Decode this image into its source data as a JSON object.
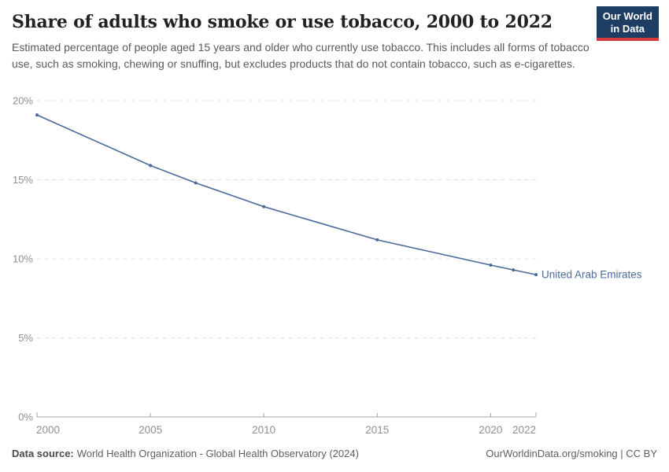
{
  "header": {
    "title": "Share of adults who smoke or use tobacco, 2000 to 2022",
    "subtitle": "Estimated percentage of people aged 15 years and older who currently use tobacco. This includes all forms of tobacco use, such as smoking, chewing or snuffing, but excludes products that do not contain tobacco, such as e-cigarettes."
  },
  "logo": {
    "line1": "Our World",
    "line2": "in Data"
  },
  "footer": {
    "data_source_label": "Data source:",
    "data_source_value": "World Health Organization - Global Health Observatory (2024)",
    "credit": "OurWorldinData.org/smoking | CC BY"
  },
  "colors": {
    "accent": "#4c6a9c",
    "brand_navy": "#1d3d63",
    "brand_red": "#d13d3d",
    "grid": "#dedede",
    "axis": "#a5a5a5",
    "tick_text": "#8f8f8f"
  },
  "chart_data": {
    "type": "line",
    "title": "Share of adults who smoke or use tobacco, 2000 to 2022",
    "xlabel": "",
    "ylabel": "",
    "x": [
      2000,
      2005,
      2007,
      2010,
      2015,
      2020,
      2021,
      2022
    ],
    "series": [
      {
        "name": "United Arab Emirates",
        "color": "#4c6a9c",
        "values": [
          19.1,
          15.9,
          14.8,
          13.3,
          11.2,
          9.6,
          9.3,
          9.0
        ]
      }
    ],
    "xlim": [
      2000,
      2022
    ],
    "ylim": [
      0,
      20
    ],
    "x_ticks": [
      2000,
      2005,
      2010,
      2015,
      2020,
      2022
    ],
    "y_ticks": [
      0,
      5,
      10,
      15,
      20
    ],
    "y_tick_suffix": "%",
    "grid": "horizontal-dashed",
    "legend_position": "line-end-label"
  }
}
